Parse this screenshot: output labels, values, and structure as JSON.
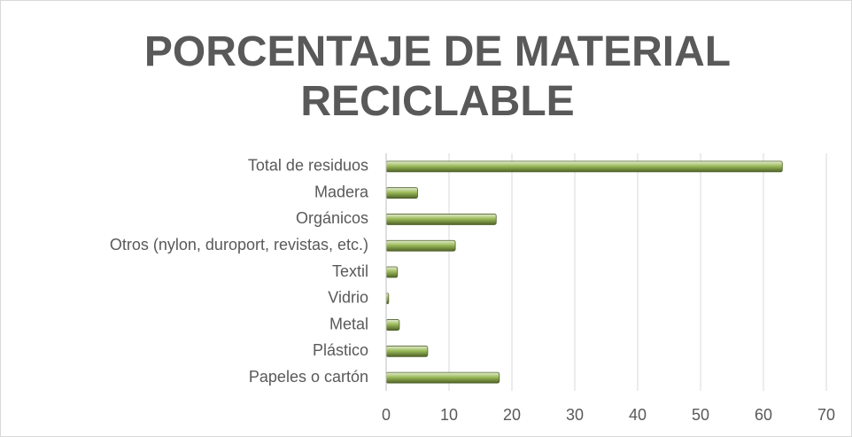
{
  "chart_data": {
    "type": "bar",
    "orientation": "horizontal",
    "title": "PORCENTAJE DE MATERIAL RECICLABLE",
    "categories": [
      "Total de residuos",
      "Madera",
      "Orgánicos",
      "Otros (nylon, duroport, revistas, etc.)",
      "Textil",
      "Vidrio",
      "Metal",
      "Plástico",
      "Papeles o cartón"
    ],
    "values": [
      63,
      5,
      17.5,
      11,
      1.8,
      0.4,
      2.1,
      6.6,
      18
    ],
    "color": "#9bbb59",
    "xlim": [
      0,
      70
    ],
    "xticks": [
      0,
      10,
      20,
      30,
      40,
      50,
      60,
      70
    ],
    "grid": true
  }
}
